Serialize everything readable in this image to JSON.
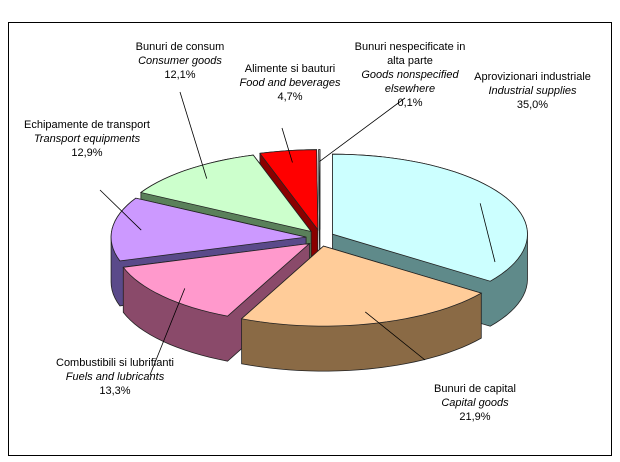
{
  "chart_data": {
    "type": "pie3d",
    "categories": [
      "Aprovizionari industriale",
      "Bunuri de capital",
      "Combustibili si lubrifianti",
      "Echipamente de transport",
      "Bunuri de consum",
      "Alimente si bauturi",
      "Bunuri nespecificate in alta parte"
    ],
    "categories_en": [
      "Industrial supplies",
      "Capital goods",
      "Fuels and lubricants",
      "Transport equipments",
      "Consumer goods",
      "Food and beverages",
      "Goods nonspecified elsewhere"
    ],
    "values": [
      35.0,
      21.9,
      13.3,
      12.9,
      12.1,
      4.7,
      0.1
    ],
    "value_labels": [
      "35,0%",
      "21,9%",
      "13,3%",
      "12,9%",
      "12,1%",
      "4,7%",
      "0,1%"
    ],
    "colors": [
      "#ccffff",
      "#ffcc99",
      "#ff99cc",
      "#cc99ff",
      "#ccffcc",
      "#ff0000",
      "#ffffff"
    ],
    "side_colors": [
      "#5f8a8a",
      "#8a6a45",
      "#8a4a6a",
      "#5a4a8a",
      "#5a805a",
      "#8a0000",
      "#aaaaaa"
    ]
  }
}
